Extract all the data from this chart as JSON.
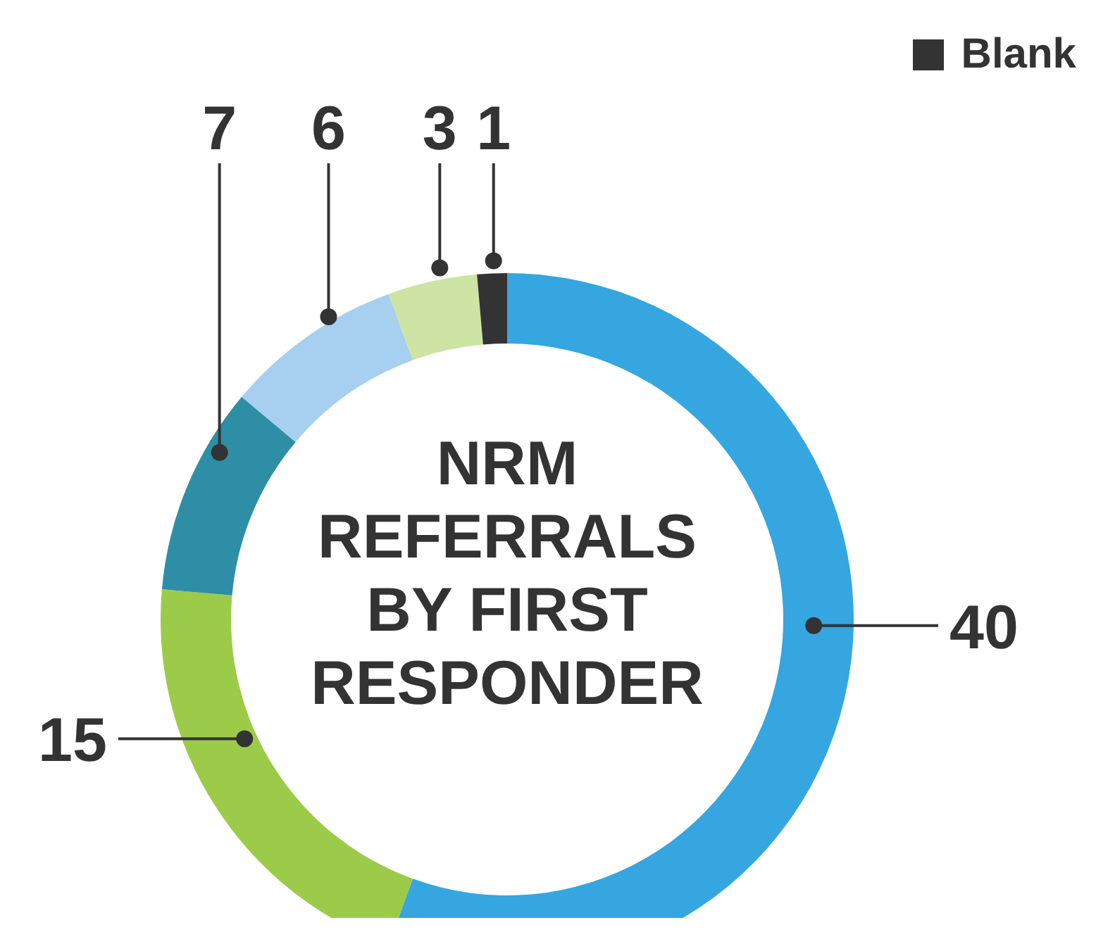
{
  "chart_data": {
    "type": "donut",
    "title": "NRM REFERRALS BY FIRST RESPONDER",
    "categories": [
      null,
      null,
      null,
      null,
      null,
      "Blank"
    ],
    "values": [
      40,
      15,
      7,
      6,
      3,
      1
    ],
    "colors": [
      "#35a6e0",
      "#9ccb4a",
      "#2e8ea6",
      "#a6cff0",
      "#cde4a4",
      "#333333"
    ],
    "data_labels": true,
    "legend": "top right"
  }
}
